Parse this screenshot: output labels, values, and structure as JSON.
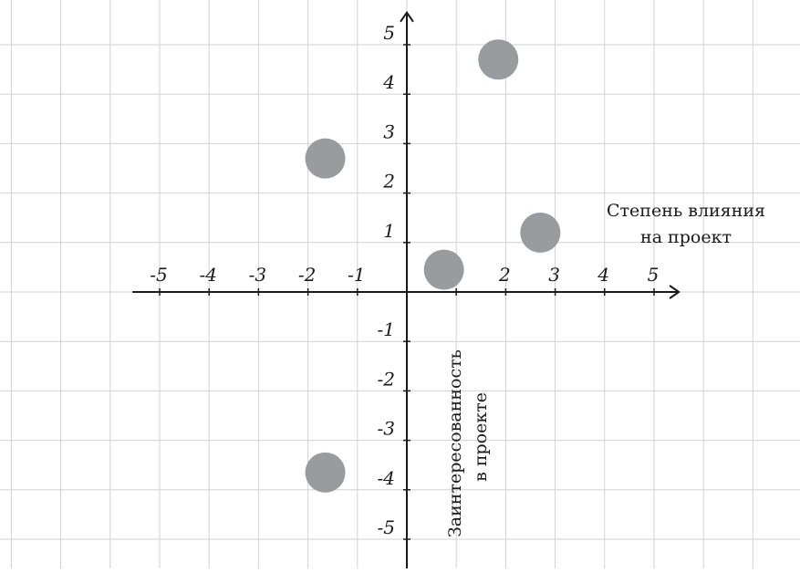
{
  "chart_data": {
    "type": "scatter",
    "title": "",
    "xlabel": "Степень влияния на проект",
    "xlabel_lines": [
      "Степень влияния",
      "на проект"
    ],
    "ylabel": "Заинтересованность в проекте",
    "ylabel_lines": [
      "Заинтересованность",
      "в проекте"
    ],
    "xlim": [
      -8,
      8
    ],
    "ylim": [
      -6,
      6
    ],
    "grid": true,
    "x_ticks": [
      {
        "value": -5,
        "label": "-5"
      },
      {
        "value": -4,
        "label": "-4"
      },
      {
        "value": -3,
        "label": "-3"
      },
      {
        "value": -2,
        "label": "-2"
      },
      {
        "value": -1,
        "label": "-1"
      },
      {
        "value": 2,
        "label": "2"
      },
      {
        "value": 3,
        "label": "3"
      },
      {
        "value": 4,
        "label": "4"
      },
      {
        "value": 5,
        "label": "5"
      }
    ],
    "y_ticks": [
      {
        "value": 5,
        "label": "5"
      },
      {
        "value": 4,
        "label": "4"
      },
      {
        "value": 3,
        "label": "3"
      },
      {
        "value": 2,
        "label": "2"
      },
      {
        "value": 1,
        "label": "1"
      },
      {
        "value": -1,
        "label": "-1"
      },
      {
        "value": -2,
        "label": "-2"
      },
      {
        "value": -3,
        "label": "-3"
      },
      {
        "value": -4,
        "label": "-4"
      },
      {
        "value": -5,
        "label": "-5"
      }
    ],
    "points": [
      {
        "x": 1.85,
        "y": 4.7
      },
      {
        "x": -1.65,
        "y": 2.7
      },
      {
        "x": 2.7,
        "y": 1.2
      },
      {
        "x": 0.75,
        "y": 0.45
      },
      {
        "x": -1.65,
        "y": -3.65
      }
    ],
    "colors": {
      "point": "#999c9f",
      "axis": "#1a1a1a",
      "grid": "#d2d2d2",
      "background": "#ffffff"
    }
  }
}
